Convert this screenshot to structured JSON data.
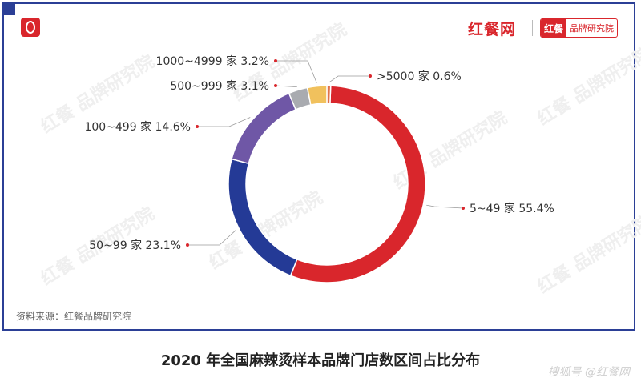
{
  "header": {
    "brand_main": "红餐网",
    "brand_badge_left": "红餐",
    "brand_badge_right": "品牌研究院"
  },
  "watermark_text": "红餐 品牌研究院",
  "source": "资料来源：红餐品牌研究院",
  "caption": "2020 年全国麻辣烫样本品牌门店数区间占比分布",
  "corner_mark": "搜狐号 @红餐网",
  "colors": {
    "accent": "#d9262c",
    "frame": "#2b3f96"
  },
  "chart_data": {
    "type": "pie",
    "donut": true,
    "title": "",
    "slices": [
      {
        "name": "5~49 家",
        "value": 55.4,
        "label": "5~49 家  55.4%",
        "color": "#d9262c"
      },
      {
        "name": "50~99 家",
        "value": 23.1,
        "label": "50~99 家  23.1%",
        "color": "#243a96"
      },
      {
        "name": "100~499 家",
        "value": 14.6,
        "label": "100~499 家  14.6%",
        "color": "#6f57a6"
      },
      {
        "name": "500~999 家",
        "value": 3.1,
        "label": "500~999 家  3.1%",
        "color": "#a9abb0"
      },
      {
        "name": "1000~4999 家",
        "value": 3.2,
        "label": "1000~4999 家  3.2%",
        "color": "#f1c15d"
      },
      {
        "name": ">5000 家",
        "value": 0.6,
        "label": ">5000 家  0.6%",
        "color": "#e0724a"
      }
    ]
  }
}
